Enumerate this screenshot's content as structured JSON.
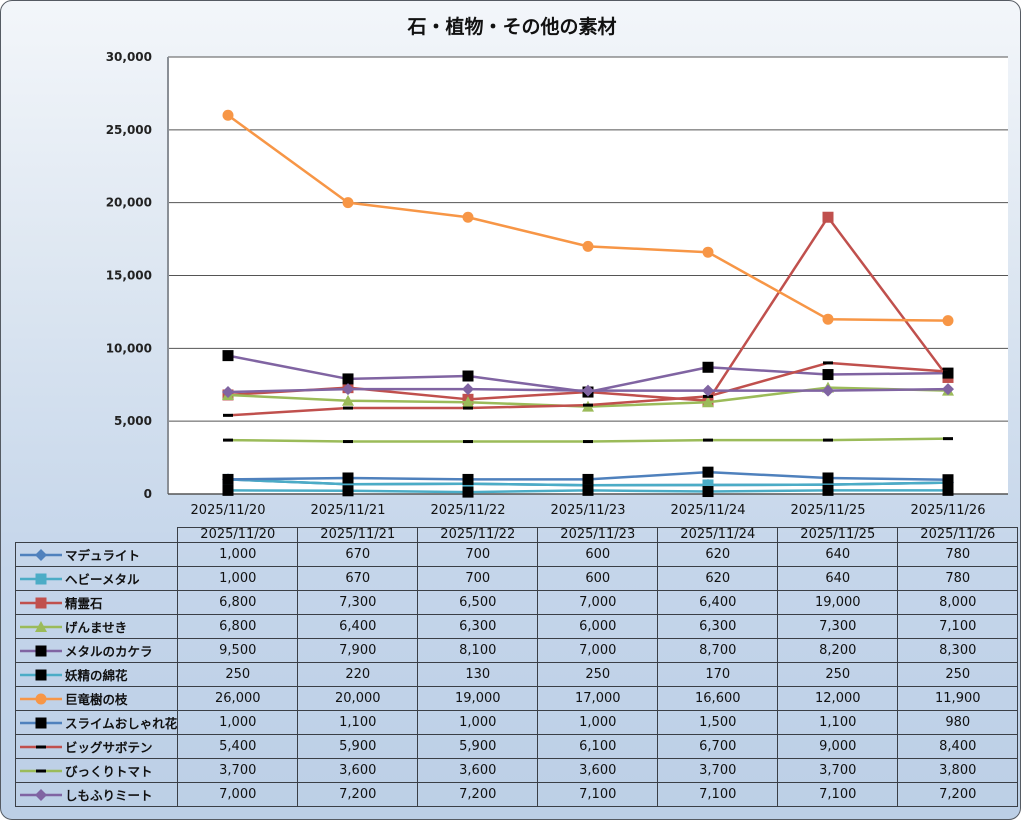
{
  "chart_data": {
    "type": "line",
    "title": "石・植物・その他の素材",
    "xlabel": "",
    "ylabel": "",
    "ylim": [
      0,
      30000
    ],
    "yticks": [
      0,
      5000,
      10000,
      15000,
      20000,
      25000,
      30000
    ],
    "ytick_labels": [
      "0",
      "5,000",
      "10,000",
      "15,000",
      "20,000",
      "25,000",
      "30,000"
    ],
    "grid": true,
    "legend": "data-table-bottom",
    "categories": [
      "2025/11/20",
      "2025/11/21",
      "2025/11/22",
      "2025/11/23",
      "2025/11/24",
      "2025/11/25",
      "2025/11/26"
    ],
    "series": [
      {
        "name": "マデュライト",
        "color": "#4f81bd",
        "marker": "diamond",
        "markerColor": "#4f81bd",
        "values": [
          1000,
          670,
          700,
          600,
          620,
          640,
          780
        ],
        "labels": [
          "1,000",
          "670",
          "700",
          "600",
          "620",
          "640",
          "780"
        ]
      },
      {
        "name": "ヘビーメタル",
        "color": "#4bacc6",
        "marker": "square",
        "markerColor": "#4bacc6",
        "values": [
          1000,
          670,
          700,
          600,
          620,
          640,
          780
        ],
        "labels": [
          "1,000",
          "670",
          "700",
          "600",
          "620",
          "640",
          "780"
        ]
      },
      {
        "name": "精霊石",
        "color": "#c0504d",
        "marker": "square",
        "markerColor": "#c0504d",
        "values": [
          6800,
          7300,
          6500,
          7000,
          6400,
          19000,
          8000
        ],
        "labels": [
          "6,800",
          "7,300",
          "6,500",
          "7,000",
          "6,400",
          "19,000",
          "8,000"
        ]
      },
      {
        "name": "げんませき",
        "color": "#9bbb59",
        "marker": "triangle",
        "markerColor": "#9bbb59",
        "values": [
          6800,
          6400,
          6300,
          6000,
          6300,
          7300,
          7100
        ],
        "labels": [
          "6,800",
          "6,400",
          "6,300",
          "6,000",
          "6,300",
          "7,300",
          "7,100"
        ]
      },
      {
        "name": "メタルのカケラ",
        "color": "#8064a2",
        "marker": "square",
        "markerColor": "#000000",
        "values": [
          9500,
          7900,
          8100,
          7000,
          8700,
          8200,
          8300
        ],
        "labels": [
          "9,500",
          "7,900",
          "8,100",
          "7,000",
          "8,700",
          "8,200",
          "8,300"
        ]
      },
      {
        "name": "妖精の綿花",
        "color": "#4bacc6",
        "marker": "square",
        "markerColor": "#000000",
        "values": [
          250,
          220,
          130,
          250,
          170,
          250,
          250
        ],
        "labels": [
          "250",
          "220",
          "130",
          "250",
          "170",
          "250",
          "250"
        ]
      },
      {
        "name": "巨竜樹の枝",
        "color": "#f79646",
        "marker": "circle",
        "markerColor": "#f79646",
        "values": [
          26000,
          20000,
          19000,
          17000,
          16600,
          12000,
          11900
        ],
        "labels": [
          "26,000",
          "20,000",
          "19,000",
          "17,000",
          "16,600",
          "12,000",
          "11,900"
        ]
      },
      {
        "name": "スライムおしゃれ花",
        "color": "#4f81bd",
        "marker": "square",
        "markerColor": "#000000",
        "values": [
          1000,
          1100,
          1000,
          1000,
          1500,
          1100,
          980
        ],
        "labels": [
          "1,000",
          "1,100",
          "1,000",
          "1,000",
          "1,500",
          "1,100",
          "980"
        ]
      },
      {
        "name": "ビッグサボテン",
        "color": "#c0504d",
        "marker": "dash",
        "markerColor": "#000000",
        "values": [
          5400,
          5900,
          5900,
          6100,
          6700,
          9000,
          8400
        ],
        "labels": [
          "5,400",
          "5,900",
          "5,900",
          "6,100",
          "6,700",
          "9,000",
          "8,400"
        ]
      },
      {
        "name": "びっくりトマト",
        "color": "#9bbb59",
        "marker": "dash",
        "markerColor": "#000000",
        "values": [
          3700,
          3600,
          3600,
          3600,
          3700,
          3700,
          3800
        ],
        "labels": [
          "3,700",
          "3,600",
          "3,600",
          "3,600",
          "3,700",
          "3,700",
          "3,800"
        ]
      },
      {
        "name": "しもふりミート",
        "color": "#8064a2",
        "marker": "diamond",
        "markerColor": "#8064a2",
        "values": [
          7000,
          7200,
          7200,
          7100,
          7100,
          7100,
          7200
        ],
        "labels": [
          "7,000",
          "7,200",
          "7,200",
          "7,100",
          "7,100",
          "7,100",
          "7,200"
        ]
      }
    ]
  }
}
